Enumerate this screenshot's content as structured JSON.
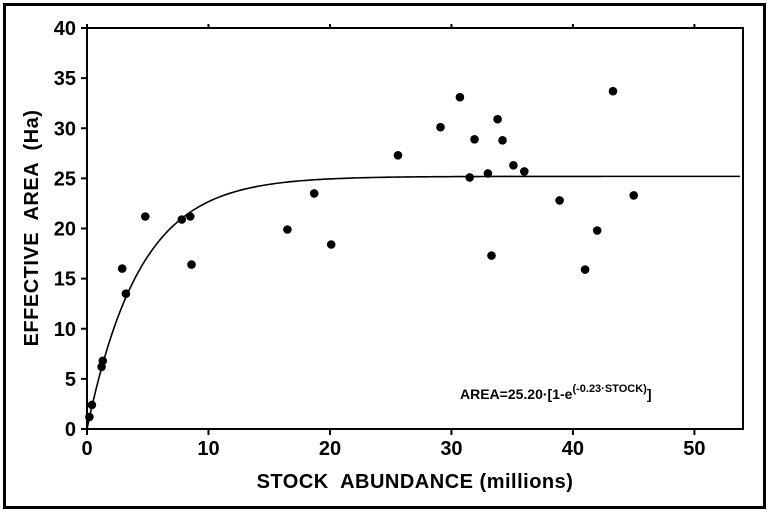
{
  "chart_data": {
    "type": "scatter",
    "title": "",
    "xlabel": "STOCK  ABUNDANCE (millions)",
    "ylabel": "EFFECTIVE  AREA  (Ha)",
    "xlim": [
      0,
      54
    ],
    "ylim": [
      0,
      40
    ],
    "xticks": [
      0,
      10,
      20,
      30,
      40,
      50
    ],
    "yticks": [
      0,
      5,
      10,
      15,
      20,
      25,
      30,
      35,
      40
    ],
    "grid": false,
    "legend": "none",
    "points": [
      [
        0.2,
        1.2
      ],
      [
        0.4,
        2.4
      ],
      [
        1.2,
        6.2
      ],
      [
        1.3,
        6.8
      ],
      [
        2.9,
        16.0
      ],
      [
        3.2,
        13.5
      ],
      [
        4.8,
        21.2
      ],
      [
        7.8,
        20.9
      ],
      [
        8.5,
        21.2
      ],
      [
        8.6,
        16.4
      ],
      [
        16.5,
        19.9
      ],
      [
        18.7,
        23.5
      ],
      [
        20.1,
        18.4
      ],
      [
        25.6,
        27.3
      ],
      [
        29.1,
        30.1
      ],
      [
        30.7,
        33.1
      ],
      [
        31.5,
        25.1
      ],
      [
        31.9,
        28.9
      ],
      [
        33.0,
        25.5
      ],
      [
        33.3,
        17.3
      ],
      [
        33.8,
        30.9
      ],
      [
        34.2,
        28.8
      ],
      [
        35.1,
        26.3
      ],
      [
        36.0,
        25.7
      ],
      [
        38.9,
        22.8
      ],
      [
        41.0,
        15.9
      ],
      [
        42.0,
        19.8
      ],
      [
        43.3,
        33.7
      ],
      [
        45.0,
        23.3
      ]
    ],
    "fit_curve": {
      "model": "AREA = a * (1 - exp(-k * STOCK))",
      "a": 25.2,
      "k": 0.23,
      "x_start": 0,
      "x_end": 53.9
    },
    "annotation": {
      "prefix": "AREA=25.20·[1-e",
      "superscript": "(-0.23·STOCK)",
      "suffix": "]"
    },
    "colors": {
      "foreground": "#000000",
      "background": "#ffffff"
    }
  }
}
